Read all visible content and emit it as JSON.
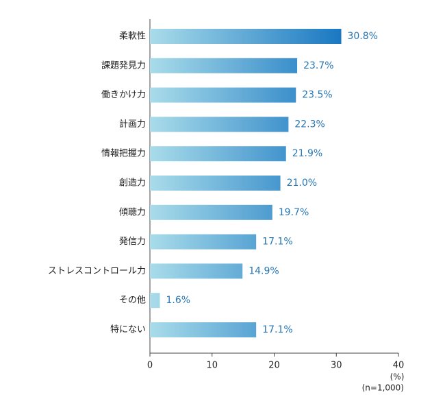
{
  "chart_data": {
    "type": "barh",
    "categories": [
      "柔軟性",
      "課題発見力",
      "働きかけ力",
      "計画力",
      "情報把握力",
      "創造力",
      "傾聴力",
      "発信力",
      "ストレスコントロール力",
      "その他",
      "特にない"
    ],
    "values": [
      30.8,
      23.7,
      23.5,
      22.3,
      21.9,
      21.0,
      19.7,
      17.1,
      14.9,
      1.6,
      17.1
    ],
    "value_labels": [
      "30.8%",
      "23.7%",
      "23.5%",
      "22.3%",
      "21.9%",
      "21.0%",
      "19.7%",
      "17.1%",
      "14.9%",
      "1.6%",
      "17.1%"
    ],
    "colors": [
      "#a9dcea",
      "#1a78c2"
    ],
    "label_color": "#2777b5",
    "xlim": [
      0,
      40
    ],
    "xticks": [
      0,
      10,
      20,
      30,
      40
    ],
    "x_label": "(%)",
    "annotation": "(n=1,000)"
  }
}
